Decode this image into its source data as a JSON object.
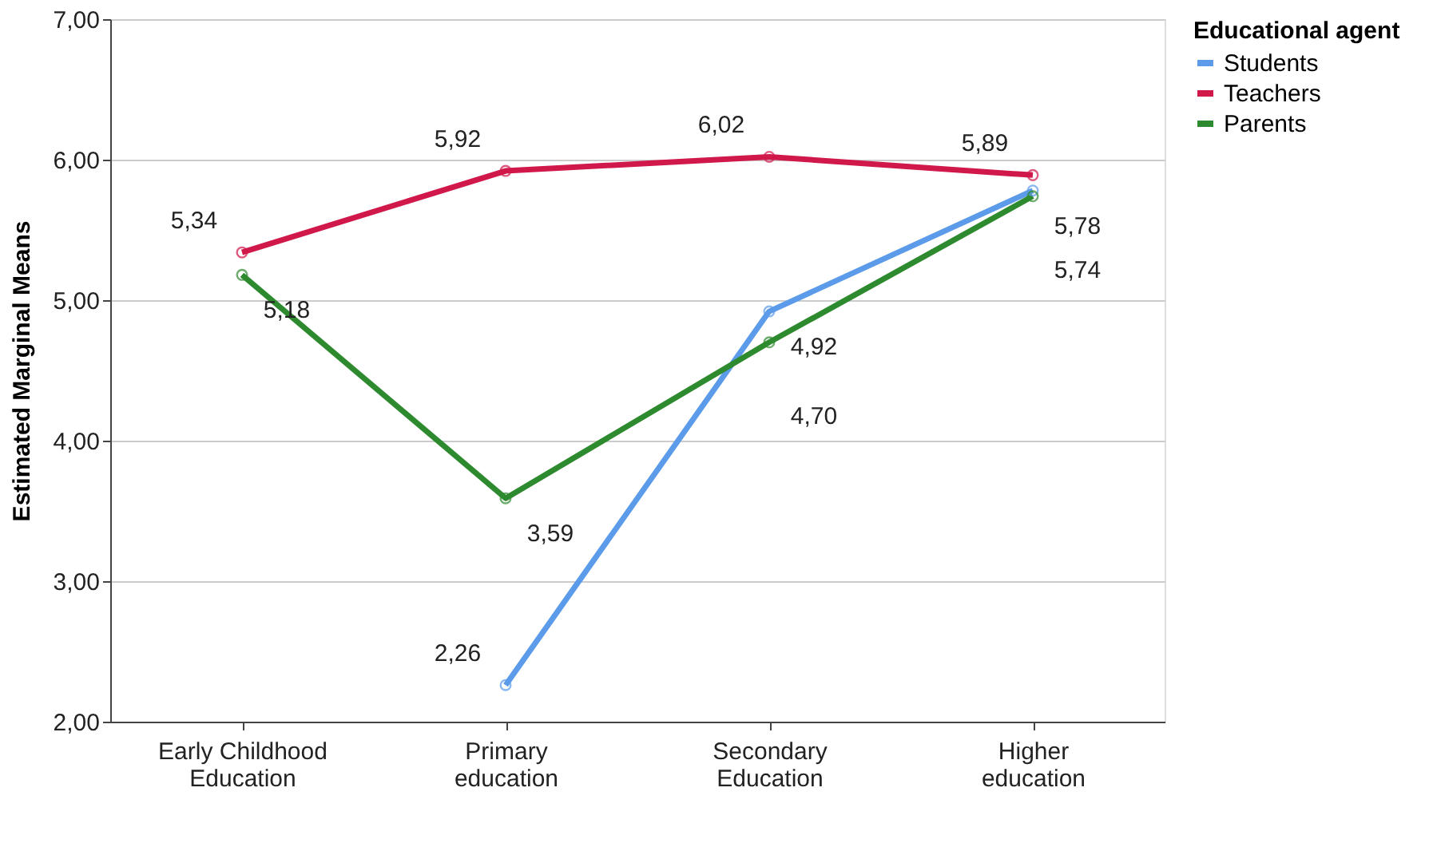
{
  "chart_data": {
    "type": "line",
    "ylabel": "Estimated Marginal Means",
    "legend_title": "Educational agent",
    "categories": [
      "Early Childhood\nEducation",
      "Primary\neducation",
      "Secondary\nEducation",
      "Higher\neducation"
    ],
    "series": [
      {
        "name": "Students",
        "color": "#5b9bea",
        "values": [
          null,
          2.26,
          4.92,
          5.78
        ],
        "value_labels": [
          null,
          "2,26",
          "4,92",
          "5,78"
        ]
      },
      {
        "name": "Teachers",
        "color": "#d1184a",
        "values": [
          5.34,
          5.92,
          6.02,
          5.89
        ],
        "value_labels": [
          "5,34",
          "5,92",
          "6,02",
          "5,89"
        ]
      },
      {
        "name": "Parents",
        "color": "#2e8a2e",
        "values": [
          5.18,
          3.59,
          4.7,
          5.74
        ],
        "value_labels": [
          "5,18",
          "3,59",
          "4,70",
          "5,74"
        ]
      }
    ],
    "ylim": [
      2,
      7
    ],
    "yticks": [
      {
        "value": 2,
        "label": "2,00"
      },
      {
        "value": 3,
        "label": "3,00"
      },
      {
        "value": 4,
        "label": "4,00"
      },
      {
        "value": 5,
        "label": "5,00"
      },
      {
        "value": 6,
        "label": "6,00"
      },
      {
        "value": 7,
        "label": "7,00"
      }
    ],
    "grid": "y",
    "legend": "top right",
    "marker": "circle",
    "line_style": "solid"
  }
}
